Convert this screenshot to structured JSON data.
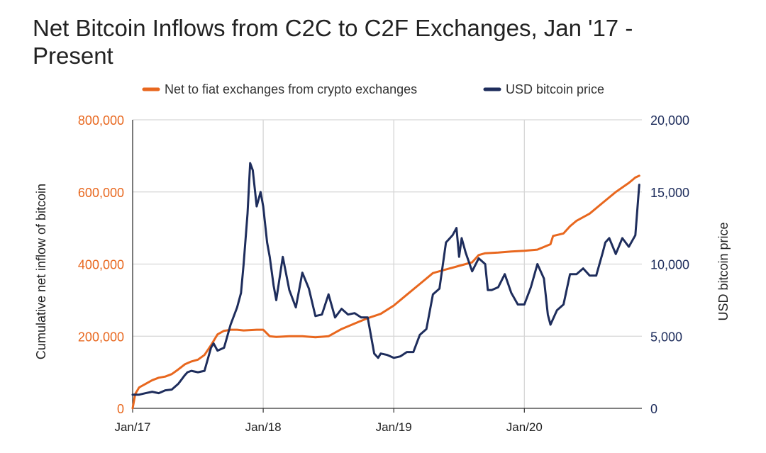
{
  "chart_data": {
    "type": "line",
    "title": "Net Bitcoin Inflows from C2C to C2F Exchanges, Jan '17 - Present",
    "ylabel": "Cumulative net inflow of bitcoin",
    "y2label": "USD bitcoin price",
    "ylim": [
      0,
      800000
    ],
    "y2lim": [
      0,
      20000
    ],
    "xlim": [
      2017.0,
      2020.9
    ],
    "x_ticks": [
      {
        "x": 2017.0,
        "label": "Jan/17"
      },
      {
        "x": 2018.0,
        "label": "Jan/18"
      },
      {
        "x": 2019.0,
        "label": "Jan/19"
      },
      {
        "x": 2020.0,
        "label": "Jan/20"
      }
    ],
    "y_ticks": [
      {
        "v": 0,
        "label": "0"
      },
      {
        "v": 200000,
        "label": "200,000"
      },
      {
        "v": 400000,
        "label": "400,000"
      },
      {
        "v": 600000,
        "label": "600,000"
      },
      {
        "v": 800000,
        "label": "800,000"
      }
    ],
    "y2_ticks": [
      {
        "v": 0,
        "label": "0"
      },
      {
        "v": 5000,
        "label": "5,000"
      },
      {
        "v": 10000,
        "label": "10,000"
      },
      {
        "v": 15000,
        "label": "15,000"
      },
      {
        "v": 20000,
        "label": "20,000"
      }
    ],
    "grid": true,
    "legend_position": "top",
    "colors": {
      "orange": "#e8671e",
      "navy": "#1e2d5c",
      "grid": "#d6d6d6"
    },
    "series": [
      {
        "name": "Net to fiat exchanges from crypto exchanges",
        "axis": "left",
        "color": "#e8671e",
        "x": [
          2017.0,
          2017.02,
          2017.05,
          2017.1,
          2017.15,
          2017.2,
          2017.25,
          2017.3,
          2017.35,
          2017.4,
          2017.45,
          2017.5,
          2017.55,
          2017.6,
          2017.65,
          2017.7,
          2017.72,
          2017.75,
          2017.8,
          2017.85,
          2017.9,
          2017.95,
          2018.0,
          2018.05,
          2018.1,
          2018.2,
          2018.3,
          2018.4,
          2018.5,
          2018.55,
          2018.6,
          2018.7,
          2018.8,
          2018.9,
          2019.0,
          2019.1,
          2019.2,
          2019.3,
          2019.4,
          2019.5,
          2019.6,
          2019.65,
          2019.7,
          2019.8,
          2019.9,
          2020.0,
          2020.1,
          2020.2,
          2020.22,
          2020.3,
          2020.35,
          2020.4,
          2020.5,
          2020.6,
          2020.7,
          2020.8,
          2020.85,
          2020.88
        ],
        "values": [
          0,
          40000,
          58000,
          68000,
          78000,
          85000,
          88000,
          95000,
          108000,
          122000,
          130000,
          135000,
          148000,
          175000,
          205000,
          215000,
          216000,
          218000,
          218000,
          216000,
          217000,
          218000,
          218000,
          200000,
          198000,
          200000,
          200000,
          197000,
          200000,
          210000,
          220000,
          235000,
          250000,
          262000,
          285000,
          315000,
          345000,
          375000,
          385000,
          395000,
          405000,
          425000,
          430000,
          432000,
          435000,
          437000,
          440000,
          455000,
          478000,
          485000,
          505000,
          520000,
          540000,
          570000,
          600000,
          625000,
          640000,
          645000
        ]
      },
      {
        "name": "USD bitcoin price",
        "axis": "right",
        "color": "#1e2d5c",
        "x": [
          2017.0,
          2017.05,
          2017.1,
          2017.15,
          2017.2,
          2017.25,
          2017.3,
          2017.35,
          2017.4,
          2017.42,
          2017.45,
          2017.5,
          2017.55,
          2017.6,
          2017.62,
          2017.65,
          2017.7,
          2017.75,
          2017.8,
          2017.83,
          2017.85,
          2017.88,
          2017.9,
          2017.92,
          2017.95,
          2017.98,
          2018.0,
          2018.03,
          2018.05,
          2018.08,
          2018.1,
          2018.15,
          2018.2,
          2018.25,
          2018.3,
          2018.35,
          2018.4,
          2018.45,
          2018.5,
          2018.55,
          2018.6,
          2018.65,
          2018.7,
          2018.75,
          2018.8,
          2018.83,
          2018.85,
          2018.88,
          2018.9,
          2018.95,
          2019.0,
          2019.05,
          2019.1,
          2019.15,
          2019.2,
          2019.25,
          2019.3,
          2019.35,
          2019.4,
          2019.45,
          2019.48,
          2019.5,
          2019.52,
          2019.55,
          2019.6,
          2019.65,
          2019.7,
          2019.72,
          2019.75,
          2019.8,
          2019.85,
          2019.9,
          2019.95,
          2020.0,
          2020.05,
          2020.1,
          2020.15,
          2020.18,
          2020.2,
          2020.25,
          2020.3,
          2020.35,
          2020.4,
          2020.45,
          2020.5,
          2020.55,
          2020.6,
          2020.62,
          2020.65,
          2020.7,
          2020.75,
          2020.8,
          2020.85,
          2020.88
        ],
        "values": [
          950,
          950,
          1050,
          1150,
          1050,
          1250,
          1300,
          1700,
          2300,
          2500,
          2600,
          2500,
          2600,
          4200,
          4500,
          4000,
          4200,
          5800,
          7000,
          8000,
          10000,
          13500,
          17000,
          16500,
          14000,
          15000,
          14000,
          11500,
          10500,
          8500,
          7500,
          10500,
          8200,
          7000,
          9400,
          8300,
          6400,
          6500,
          7900,
          6300,
          6900,
          6500,
          6600,
          6300,
          6300,
          4800,
          3800,
          3500,
          3800,
          3700,
          3500,
          3600,
          3900,
          3900,
          5100,
          5500,
          7900,
          8300,
          11500,
          12000,
          12500,
          10500,
          11800,
          10800,
          9500,
          10400,
          10000,
          8200,
          8200,
          8400,
          9300,
          8000,
          7200,
          7200,
          8400,
          10000,
          9000,
          6500,
          5800,
          6800,
          7200,
          9300,
          9300,
          9700,
          9200,
          9200,
          10800,
          11500,
          11800,
          10700,
          11800,
          11200,
          12000,
          15500
        ]
      }
    ]
  }
}
